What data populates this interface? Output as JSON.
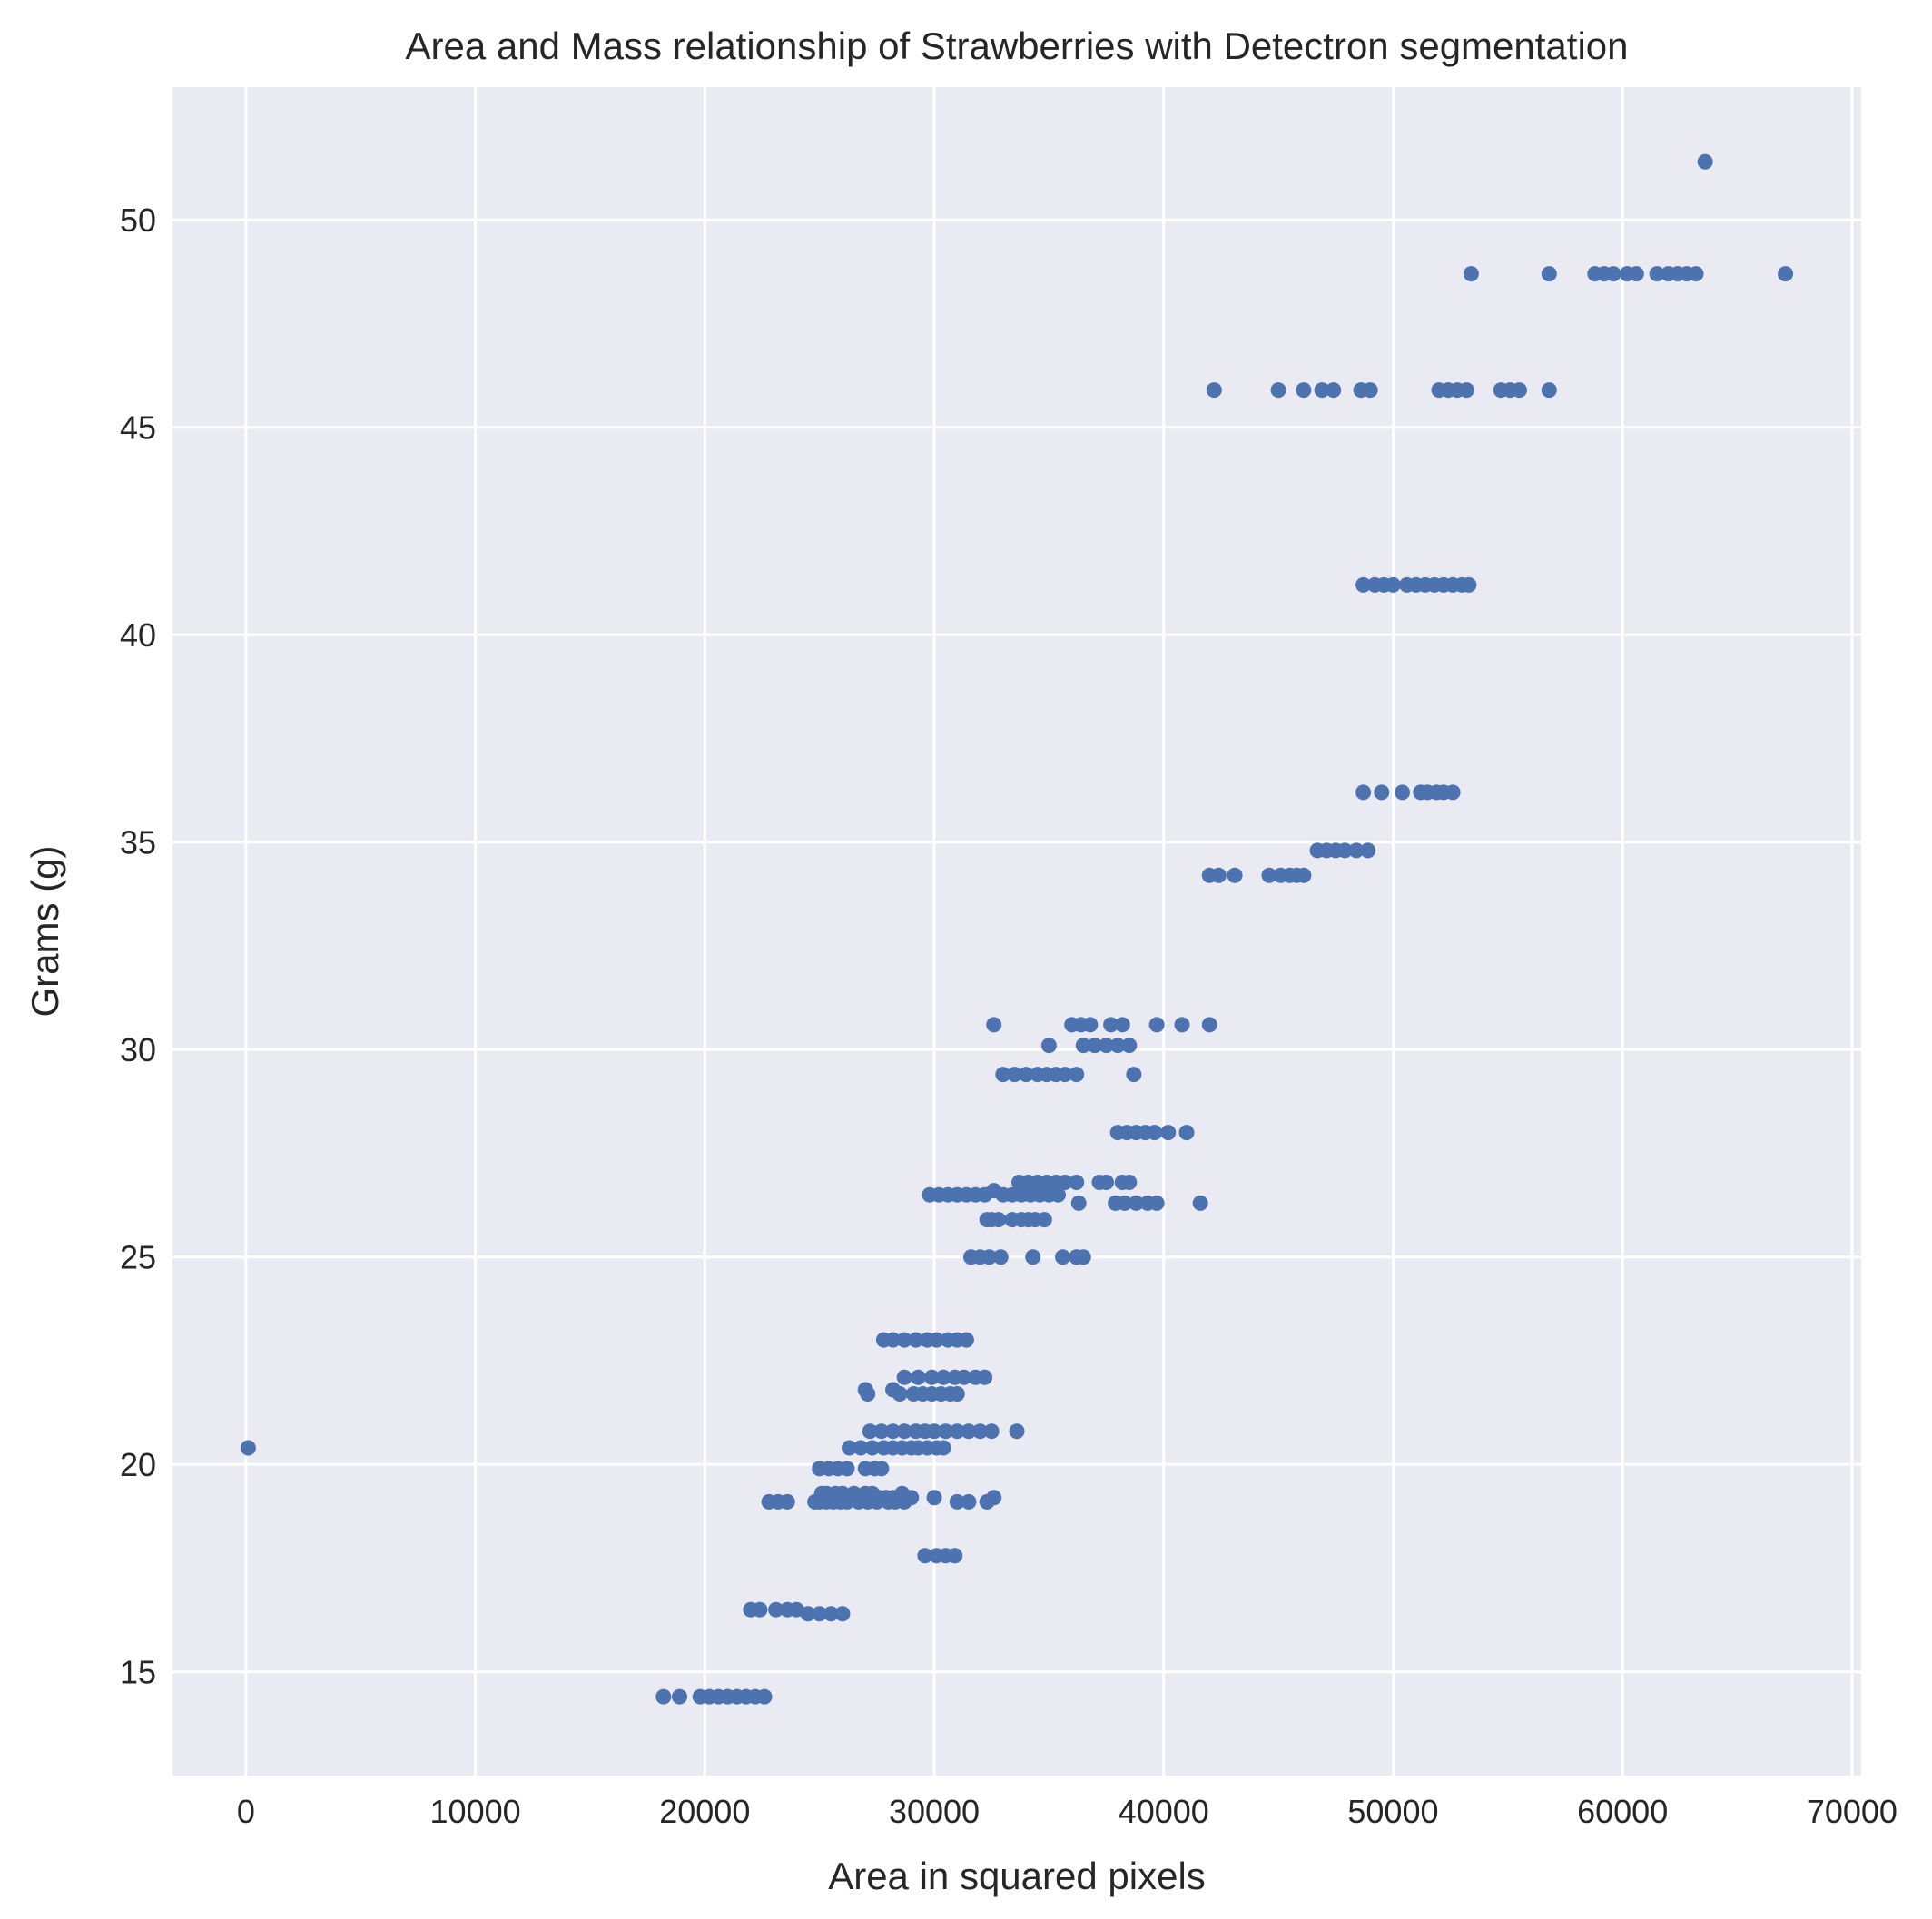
{
  "chart_data": {
    "type": "scatter",
    "title": "Area and Mass relationship of Strawberries with Detectron segmentation",
    "xlabel": "Area in squared pixels",
    "ylabel": "Grams (g)",
    "xlim": [
      -3200,
      70400
    ],
    "ylim": [
      12.5,
      53.2
    ],
    "xticks": [
      0,
      10000,
      20000,
      30000,
      40000,
      50000,
      60000,
      70000
    ],
    "yticks": [
      15,
      20,
      25,
      30,
      35,
      40,
      45,
      50
    ],
    "grid": true,
    "legend": "none",
    "colors": {
      "background": "#eaeaf2",
      "point": "#4c72b0",
      "grid": "#ffffff",
      "text": "#262626"
    },
    "series": [
      {
        "x": [
          100,
          18200,
          18900,
          19800,
          20200,
          20600,
          21000,
          21400,
          21800,
          22200,
          22600,
          22000,
          22400,
          23100,
          23600,
          24000,
          24500,
          25000,
          25500,
          26000,
          22800,
          23200,
          23600,
          24800,
          25000,
          25300,
          25600,
          25900,
          26200,
          26700,
          27100,
          27500,
          28000,
          28300,
          28700,
          30000,
          31000,
          31500,
          32300,
          32600,
          25100,
          25300,
          25700,
          26000,
          26500,
          27000,
          27300,
          27600,
          27900,
          28200,
          28600,
          29000,
          25000,
          25400,
          25800,
          26200,
          27000,
          27400,
          27700,
          26300,
          26800,
          27300,
          27800,
          28200,
          28600,
          29000,
          29300,
          29700,
          30100,
          30400,
          27200,
          27700,
          28200,
          28700,
          29200,
          29600,
          30000,
          30500,
          31000,
          31500,
          32000,
          32500,
          33600,
          27000,
          27100,
          28200,
          28500,
          29100,
          29500,
          29900,
          30300,
          30700,
          31000,
          28700,
          29300,
          29900,
          30400,
          30900,
          31300,
          31800,
          32200,
          27800,
          28200,
          28700,
          29200,
          29700,
          30100,
          30600,
          31000,
          31400,
          29600,
          30100,
          30500,
          30900,
          31600,
          32000,
          32400,
          32900,
          34300,
          35600,
          36200,
          36500,
          32300,
          32500,
          32800,
          33400,
          33800,
          34100,
          34400,
          34800,
          29800,
          30200,
          30600,
          31000,
          31400,
          31800,
          32200,
          32600,
          33000,
          33400,
          33800,
          34200,
          34600,
          35000,
          35400,
          36300,
          37900,
          38300,
          38800,
          39300,
          39700,
          41600,
          33700,
          34100,
          34500,
          34900,
          35300,
          35700,
          36200,
          37200,
          37500,
          38200,
          38500,
          38000,
          38400,
          38800,
          39200,
          39600,
          40200,
          41000,
          33000,
          33500,
          34000,
          34500,
          34900,
          35300,
          35700,
          36200,
          38700,
          35000,
          36500,
          37000,
          37500,
          38000,
          38500,
          32600,
          36000,
          36400,
          36800,
          37700,
          38200,
          39700,
          40800,
          42000,
          42000,
          42400,
          43100,
          44600,
          45100,
          45500,
          45800,
          46100,
          46700,
          47100,
          47500,
          47900,
          48400,
          48900,
          48700,
          49500,
          50400,
          51200,
          51500,
          51900,
          52200,
          52600,
          48700,
          49200,
          49600,
          50000,
          50600,
          51000,
          51400,
          51800,
          52200,
          52600,
          53000,
          53300,
          42200,
          45000,
          46100,
          46900,
          47400,
          48600,
          49000,
          52000,
          52400,
          52800,
          53200,
          54700,
          55100,
          55500,
          56800,
          53400,
          56800,
          58800,
          59200,
          59600,
          60200,
          60600,
          61500,
          62000,
          62400,
          62800,
          63200,
          67100,
          63600
        ],
        "y": [
          20.4,
          14.4,
          14.4,
          14.4,
          14.4,
          14.4,
          14.4,
          14.4,
          14.4,
          14.4,
          14.4,
          16.5,
          16.5,
          16.5,
          16.5,
          16.5,
          16.4,
          16.4,
          16.4,
          16.4,
          19.1,
          19.1,
          19.1,
          19.1,
          19.1,
          19.1,
          19.1,
          19.1,
          19.1,
          19.1,
          19.1,
          19.1,
          19.1,
          19.1,
          19.1,
          19.2,
          19.1,
          19.1,
          19.1,
          19.2,
          19.3,
          19.3,
          19.3,
          19.3,
          19.3,
          19.3,
          19.3,
          19.2,
          19.2,
          19.2,
          19.3,
          19.2,
          19.9,
          19.9,
          19.9,
          19.9,
          19.9,
          19.9,
          19.9,
          20.4,
          20.4,
          20.4,
          20.4,
          20.4,
          20.4,
          20.4,
          20.4,
          20.4,
          20.4,
          20.4,
          20.8,
          20.8,
          20.8,
          20.8,
          20.8,
          20.8,
          20.8,
          20.8,
          20.8,
          20.8,
          20.8,
          20.8,
          20.8,
          21.8,
          21.7,
          21.8,
          21.7,
          21.7,
          21.7,
          21.7,
          21.7,
          21.7,
          21.7,
          22.1,
          22.1,
          22.1,
          22.1,
          22.1,
          22.1,
          22.1,
          22.1,
          23.0,
          23.0,
          23.0,
          23.0,
          23.0,
          23.0,
          23.0,
          23.0,
          23.0,
          17.8,
          17.8,
          17.8,
          17.8,
          25.0,
          25.0,
          25.0,
          25.0,
          25.0,
          25.0,
          25.0,
          25.0,
          25.9,
          25.9,
          25.9,
          25.9,
          25.9,
          25.9,
          25.9,
          25.9,
          26.5,
          26.5,
          26.5,
          26.5,
          26.5,
          26.5,
          26.5,
          26.6,
          26.5,
          26.5,
          26.5,
          26.5,
          26.5,
          26.5,
          26.5,
          26.3,
          26.3,
          26.3,
          26.3,
          26.3,
          26.3,
          26.3,
          26.8,
          26.8,
          26.8,
          26.8,
          26.8,
          26.8,
          26.8,
          26.8,
          26.8,
          26.8,
          26.8,
          28.0,
          28.0,
          28.0,
          28.0,
          28.0,
          28.0,
          28.0,
          29.4,
          29.4,
          29.4,
          29.4,
          29.4,
          29.4,
          29.4,
          29.4,
          29.4,
          30.1,
          30.1,
          30.1,
          30.1,
          30.1,
          30.1,
          30.6,
          30.6,
          30.6,
          30.6,
          30.6,
          30.6,
          30.6,
          30.6,
          30.6,
          34.2,
          34.2,
          34.2,
          34.2,
          34.2,
          34.2,
          34.2,
          34.2,
          34.8,
          34.8,
          34.8,
          34.8,
          34.8,
          34.8,
          36.2,
          36.2,
          36.2,
          36.2,
          36.2,
          36.2,
          36.2,
          36.2,
          41.2,
          41.2,
          41.2,
          41.2,
          41.2,
          41.2,
          41.2,
          41.2,
          41.2,
          41.2,
          41.2,
          41.2,
          45.9,
          45.9,
          45.9,
          45.9,
          45.9,
          45.9,
          45.9,
          45.9,
          45.9,
          45.9,
          45.9,
          45.9,
          45.9,
          45.9,
          45.9,
          48.7,
          48.7,
          48.7,
          48.7,
          48.7,
          48.7,
          48.7,
          48.7,
          48.7,
          48.7,
          48.7,
          48.7,
          48.7,
          51.4
        ]
      }
    ]
  }
}
